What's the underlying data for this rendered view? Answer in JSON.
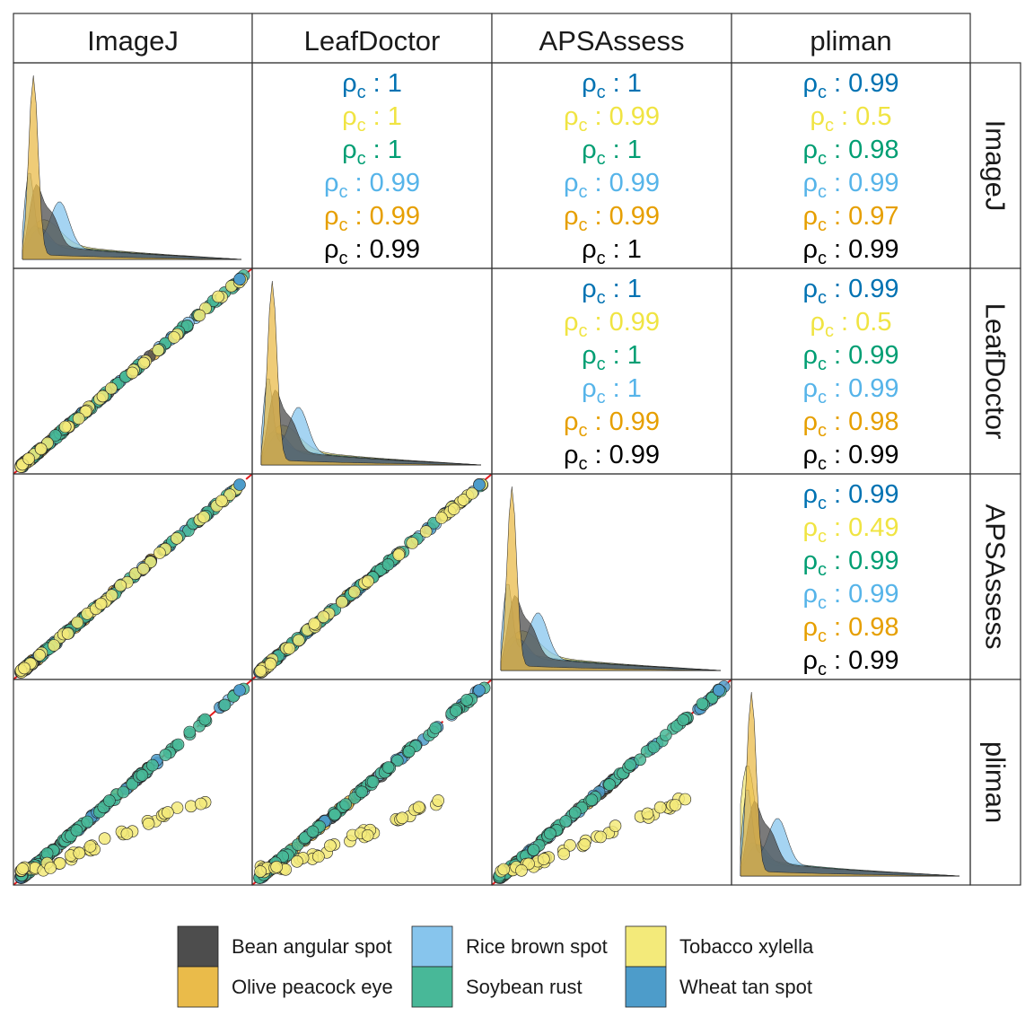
{
  "chart_data": {
    "type": "scatter",
    "variables": [
      "ImageJ",
      "LeafDoctor",
      "APSAssess",
      "pliman"
    ],
    "series": [
      {
        "name": "Wheat tan spot",
        "color": "#0072B2"
      },
      {
        "name": "Tobacco xylella",
        "color": "#F0E442"
      },
      {
        "name": "Soybean rust",
        "color": "#009E73"
      },
      {
        "name": "Rice brown spot",
        "color": "#56B4E9"
      },
      {
        "name": "Olive peacock eye",
        "color": "#E69F00"
      },
      {
        "name": "Bean angular spot",
        "color": "#000000"
      }
    ],
    "correlation_label": "ρ",
    "correlation_subscript": "c",
    "correlations": [
      {
        "row": "ImageJ",
        "col": "LeafDoctor",
        "values": [
          "1",
          "1",
          "1",
          "0.99",
          "0.99",
          "0.99"
        ]
      },
      {
        "row": "ImageJ",
        "col": "APSAssess",
        "values": [
          "1",
          "0.99",
          "1",
          "0.99",
          "0.99",
          "1"
        ]
      },
      {
        "row": "ImageJ",
        "col": "pliman",
        "values": [
          "0.99",
          "0.5",
          "0.98",
          "0.99",
          "0.97",
          "0.99"
        ]
      },
      {
        "row": "LeafDoctor",
        "col": "APSAssess",
        "values": [
          "1",
          "0.99",
          "1",
          "1",
          "0.99",
          "0.99"
        ]
      },
      {
        "row": "LeafDoctor",
        "col": "pliman",
        "values": [
          "0.99",
          "0.5",
          "0.99",
          "0.99",
          "0.98",
          "0.99"
        ]
      },
      {
        "row": "APSAssess",
        "col": "pliman",
        "values": [
          "0.99",
          "0.49",
          "0.99",
          "0.99",
          "0.98",
          "0.99"
        ]
      }
    ],
    "legend": {
      "position": "bottom",
      "columns": [
        [
          "Bean angular spot",
          "Olive peacock eye"
        ],
        [
          "Rice brown spot",
          "Soybean rust"
        ],
        [
          "Tobacco xylella",
          "Wheat tan spot"
        ]
      ],
      "colors": {
        "Bean angular spot": "#4D4D4D",
        "Olive peacock eye": "#EABB4A",
        "Rice brown spot": "#87C5ED",
        "Soybean rust": "#48B898",
        "Tobacco xylella": "#F3EA7A",
        "Wheat tan spot": "#4D9CCA"
      }
    },
    "reference_line": {
      "type": "identity",
      "color": "#E41A1C",
      "style": "dashed"
    },
    "grid": false
  }
}
